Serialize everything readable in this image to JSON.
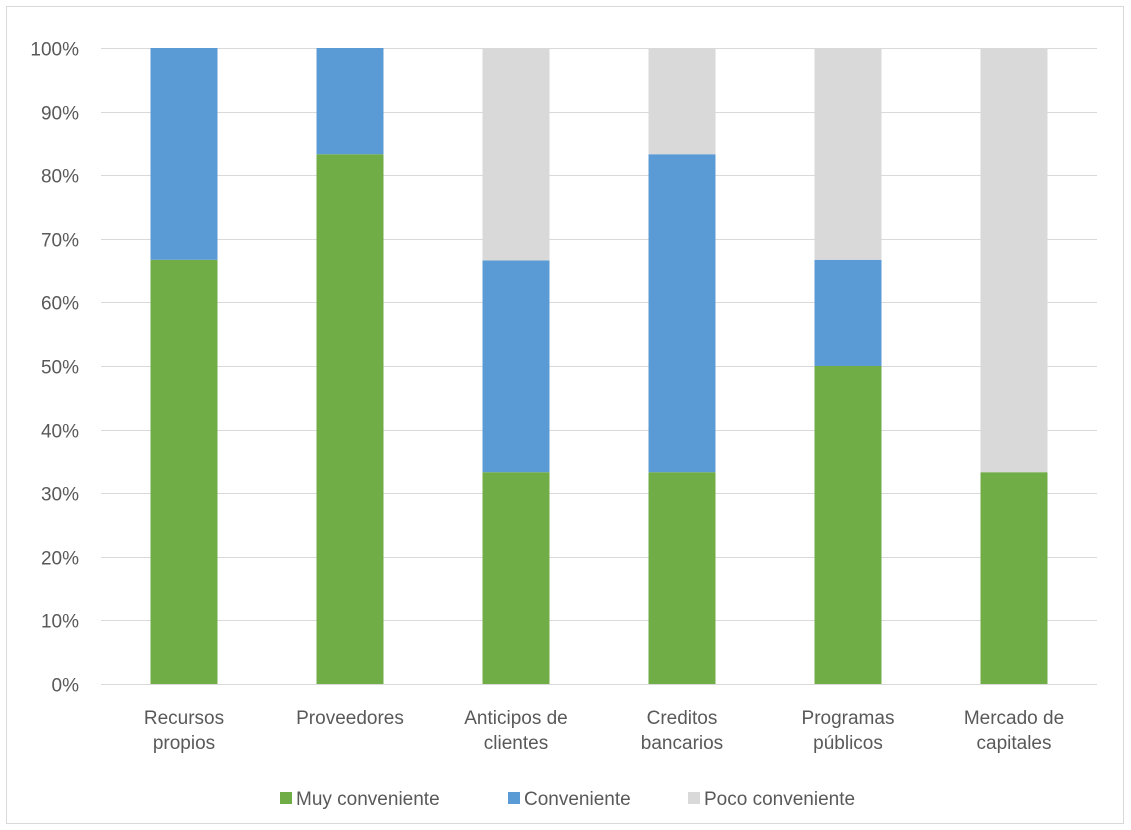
{
  "chart_data": {
    "type": "bar",
    "stacked": true,
    "percent_stacked": true,
    "title": "",
    "xlabel": "",
    "ylabel": "",
    "categories": [
      [
        "Recursos",
        "propios"
      ],
      [
        "Proveedores"
      ],
      [
        "Anticipos de",
        "clientes"
      ],
      [
        "Creditos",
        "bancarios"
      ],
      [
        "Programas",
        "públicos"
      ],
      [
        "Mercado de",
        "capitales"
      ]
    ],
    "series": [
      {
        "name": "Muy conveniente",
        "color": "#70ad47",
        "values": [
          66.7,
          83.3,
          33.3,
          33.3,
          50.0,
          33.3
        ]
      },
      {
        "name": "Conveniente",
        "color": "#5b9bd5",
        "values": [
          33.3,
          16.7,
          33.3,
          50.0,
          16.7,
          0.0
        ]
      },
      {
        "name": "Poco conveniente",
        "color": "#d9d9d9",
        "values": [
          0.0,
          0.0,
          33.3,
          16.7,
          33.3,
          66.7
        ]
      }
    ],
    "ylim": [
      0,
      100
    ],
    "yticks": [
      "0%",
      "10%",
      "20%",
      "30%",
      "40%",
      "50%",
      "60%",
      "70%",
      "80%",
      "90%",
      "100%"
    ],
    "grid": true,
    "legend_position": "bottom"
  }
}
